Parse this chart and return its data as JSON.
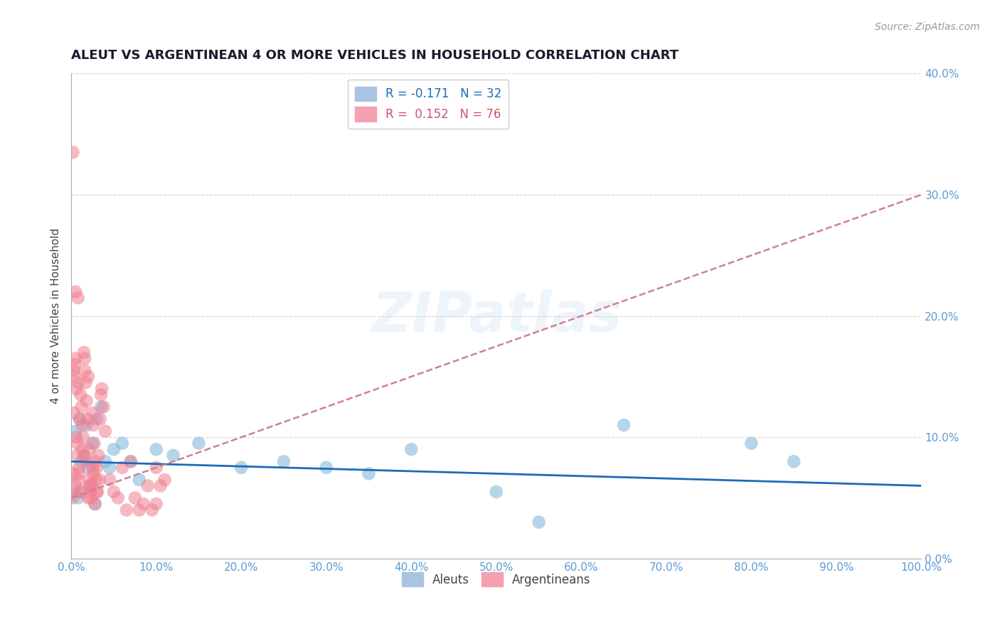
{
  "title": "ALEUT VS ARGENTINEAN 4 OR MORE VEHICLES IN HOUSEHOLD CORRELATION CHART",
  "source": "Source: ZipAtlas.com",
  "ylabel": "4 or more Vehicles in Household",
  "watermark": "ZIPatlas",
  "aleuts_color": "#7ab4d8",
  "argentineans_color": "#f08090",
  "aleuts_line_color": "#1e6bb8",
  "argentineans_line_color": "#d08090",
  "xlim": [
    0.0,
    100.0
  ],
  "ylim": [
    0.0,
    40.0
  ],
  "x_ticks": [
    0,
    10,
    20,
    30,
    40,
    50,
    60,
    70,
    80,
    90,
    100
  ],
  "x_tick_labels": [
    "0.0%",
    "10.0%",
    "20.0%",
    "30.0%",
    "40.0%",
    "50.0%",
    "60.0%",
    "70.0%",
    "80.0%",
    "90.0%",
    "100.0%"
  ],
  "y_ticks": [
    0,
    10,
    20,
    30,
    40
  ],
  "y_tick_labels": [
    "0.0%",
    "10.0%",
    "20.0%",
    "30.0%",
    "40.0%"
  ],
  "blue_line_start_y": 8.0,
  "blue_line_end_y": 6.0,
  "pink_line_start_y": 5.0,
  "pink_line_end_y": 30.0,
  "aleuts_x": [
    0.3,
    0.5,
    0.8,
    1.0,
    1.2,
    1.5,
    1.8,
    2.0,
    2.2,
    2.5,
    2.8,
    3.0,
    3.5,
    4.0,
    4.5,
    5.0,
    6.0,
    7.0,
    8.0,
    10.0,
    12.0,
    15.0,
    20.0,
    25.0,
    30.0,
    35.0,
    40.0,
    50.0,
    55.0,
    65.0,
    80.0,
    85.0
  ],
  "aleuts_y": [
    5.5,
    10.5,
    5.0,
    11.5,
    8.0,
    8.5,
    11.0,
    7.5,
    6.0,
    9.5,
    4.5,
    11.5,
    12.5,
    8.0,
    7.5,
    9.0,
    9.5,
    8.0,
    6.5,
    9.0,
    8.5,
    9.5,
    7.5,
    8.0,
    7.5,
    7.0,
    9.0,
    5.5,
    3.0,
    11.0,
    9.5,
    8.0
  ],
  "argentineans_x": [
    0.1,
    0.2,
    0.3,
    0.4,
    0.5,
    0.5,
    0.6,
    0.7,
    0.8,
    0.8,
    0.9,
    1.0,
    1.0,
    1.1,
    1.2,
    1.3,
    1.4,
    1.5,
    1.5,
    1.6,
    1.7,
    1.8,
    1.9,
    2.0,
    2.0,
    2.1,
    2.2,
    2.3,
    2.4,
    2.5,
    2.5,
    2.6,
    2.7,
    2.8,
    2.9,
    3.0,
    3.0,
    3.2,
    3.4,
    3.5,
    3.8,
    4.0,
    4.5,
    5.0,
    5.5,
    6.0,
    6.5,
    7.0,
    7.5,
    8.0,
    8.5,
    9.0,
    9.5,
    10.0,
    10.5,
    11.0,
    0.3,
    0.4,
    0.6,
    0.7,
    0.9,
    1.1,
    1.3,
    1.6,
    1.8,
    2.1,
    2.3,
    2.6,
    2.8,
    3.1,
    3.3,
    3.6,
    0.2,
    0.5,
    0.8,
    10.0
  ],
  "argentineans_y": [
    5.0,
    7.0,
    12.0,
    15.0,
    6.0,
    16.5,
    14.0,
    9.5,
    6.5,
    14.5,
    7.5,
    5.5,
    11.5,
    13.5,
    12.5,
    11.0,
    10.0,
    8.5,
    17.0,
    15.5,
    14.5,
    13.0,
    11.5,
    5.0,
    15.0,
    9.0,
    6.5,
    5.5,
    6.0,
    7.5,
    12.0,
    11.0,
    9.5,
    8.0,
    6.5,
    7.5,
    5.5,
    8.5,
    11.5,
    13.5,
    12.5,
    10.5,
    6.5,
    5.5,
    5.0,
    7.5,
    4.0,
    8.0,
    5.0,
    4.0,
    4.5,
    6.0,
    4.0,
    7.5,
    6.0,
    6.5,
    15.5,
    16.0,
    10.0,
    8.5,
    7.0,
    5.5,
    9.0,
    16.5,
    8.0,
    6.0,
    5.0,
    7.0,
    4.5,
    5.5,
    6.5,
    14.0,
    33.5,
    22.0,
    21.5,
    4.5
  ]
}
